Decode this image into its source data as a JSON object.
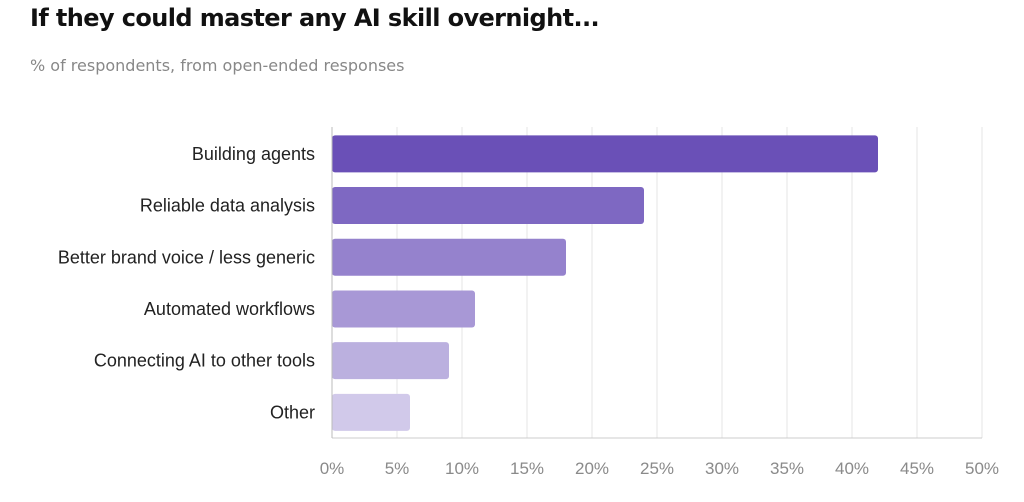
{
  "title": "If they could master any AI skill overnight...",
  "subtitle": "% of respondents, from open-ended responses",
  "chart_data": {
    "type": "bar",
    "orientation": "horizontal",
    "title": "If they could master any AI skill overnight...",
    "subtitle": "% of respondents, from open-ended responses",
    "categories": [
      "Building agents",
      "Reliable data analysis",
      "Better brand voice / less generic",
      "Automated workflows",
      "Connecting AI to other tools",
      "Other"
    ],
    "values": [
      42,
      24,
      18,
      11,
      9,
      6
    ],
    "unit": "%",
    "xlim": [
      0,
      50
    ],
    "xticks": [
      0,
      5,
      10,
      15,
      20,
      25,
      30,
      35,
      40,
      45,
      50
    ],
    "xtick_labels": [
      "0%",
      "5%",
      "10%",
      "15%",
      "20%",
      "25%",
      "30%",
      "35%",
      "40%",
      "45%",
      "50%"
    ],
    "bar_colors": [
      "#6a50b7",
      "#7e68c2",
      "#9582cd",
      "#a898d6",
      "#bbb0df",
      "#d1c9ea"
    ],
    "grid": true,
    "legend": "none",
    "xlabel": "",
    "ylabel": ""
  }
}
